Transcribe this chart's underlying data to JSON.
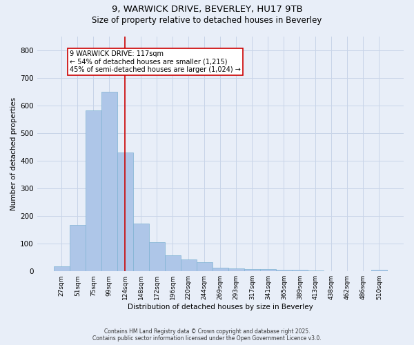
{
  "title_line1": "9, WARWICK DRIVE, BEVERLEY, HU17 9TB",
  "title_line2": "Size of property relative to detached houses in Beverley",
  "xlabel": "Distribution of detached houses by size in Beverley",
  "ylabel": "Number of detached properties",
  "categories": [
    "27sqm",
    "51sqm",
    "75sqm",
    "99sqm",
    "124sqm",
    "148sqm",
    "172sqm",
    "196sqm",
    "220sqm",
    "244sqm",
    "269sqm",
    "293sqm",
    "317sqm",
    "341sqm",
    "365sqm",
    "389sqm",
    "413sqm",
    "438sqm",
    "462sqm",
    "486sqm",
    "510sqm"
  ],
  "values": [
    18,
    168,
    583,
    648,
    430,
    173,
    105,
    57,
    42,
    32,
    14,
    10,
    9,
    8,
    6,
    5,
    3,
    1,
    0,
    0,
    5
  ],
  "bar_color": "#aec6e8",
  "bar_edge_color": "#7fb3d3",
  "grid_color": "#c8d4e8",
  "background_color": "#e8eef8",
  "vline_color": "#cc0000",
  "vline_x_index": 4,
  "annotation_text": "9 WARWICK DRIVE: 117sqm\n← 54% of detached houses are smaller (1,215)\n45% of semi-detached houses are larger (1,024) →",
  "annotation_box_color": "white",
  "annotation_box_edge": "#cc0000",
  "ylim": [
    0,
    850
  ],
  "yticks": [
    0,
    100,
    200,
    300,
    400,
    500,
    600,
    700,
    800
  ],
  "footer_line1": "Contains HM Land Registry data © Crown copyright and database right 2025.",
  "footer_line2": "Contains public sector information licensed under the Open Government Licence v3.0."
}
